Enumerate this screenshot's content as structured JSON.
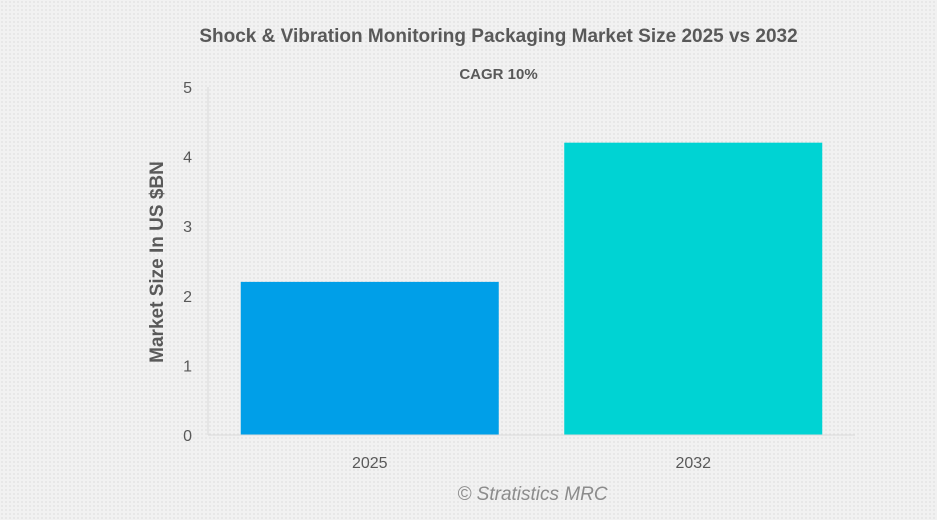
{
  "chart_data": {
    "type": "bar",
    "title": "Shock & Vibration Monitoring Packaging Market Size 2025 vs 2032",
    "subtitle": "CAGR 10%",
    "ylabel": "Market Size In US $BN",
    "xlabel": "",
    "categories": [
      "2025",
      "2032"
    ],
    "values": [
      2.2,
      4.2
    ],
    "colors": [
      "#009fe8",
      "#00d3d3"
    ],
    "ylim": [
      0,
      5
    ],
    "yticks": [
      "0",
      "1",
      "2",
      "3",
      "4",
      "5"
    ],
    "grid": false,
    "legend": "none"
  },
  "watermark": "© Stratistics MRC"
}
